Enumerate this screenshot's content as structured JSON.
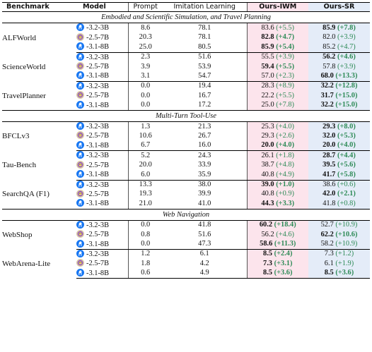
{
  "headers": {
    "benchmark": "Benchmark",
    "model": "Model",
    "prompt": "Prompt",
    "imitation": "Imitation Learning",
    "iwm": "Ours-IWM",
    "sr": "Ours-SR"
  },
  "icons": {
    "llama": "llama-icon",
    "qwen": "qwen-icon",
    "llama_color": "#1877f2",
    "qwen_color": "#8a4fbf"
  },
  "sections": [
    {
      "title": "Embodied and Scientific Simulation, and Travel Planning",
      "benchmarks": [
        {
          "name": "ALFWorld",
          "rows": [
            {
              "icon": "llama",
              "model": "-3.2-3B",
              "prompt": "8.6",
              "imit": "78.1",
              "iwm": "83.6",
              "iwm_d": "(+5.5)",
              "iwm_b": false,
              "sr": "85.9",
              "sr_d": "(+7.8)",
              "sr_b": true
            },
            {
              "icon": "qwen",
              "model": "-2.5-7B",
              "prompt": "20.3",
              "imit": "78.1",
              "iwm": "82.8",
              "iwm_d": "(+4.7)",
              "iwm_b": true,
              "sr": "82.0",
              "sr_d": "(+3.9)",
              "sr_b": false
            },
            {
              "icon": "llama",
              "model": "-3.1-8B",
              "prompt": "25.0",
              "imit": "80.5",
              "iwm": "85.9",
              "iwm_d": "(+5.4)",
              "iwm_b": true,
              "sr": "85.2",
              "sr_d": "(+4.7)",
              "sr_b": false
            }
          ]
        },
        {
          "name": "ScienceWorld",
          "rows": [
            {
              "icon": "llama",
              "model": "-3.2-3B",
              "prompt": "2.3",
              "imit": "51.6",
              "iwm": "55.5",
              "iwm_d": "(+3.9)",
              "iwm_b": false,
              "sr": "56.2",
              "sr_d": "(+4.6)",
              "sr_b": true
            },
            {
              "icon": "qwen",
              "model": "-2.5-7B",
              "prompt": "3.9",
              "imit": "53.9",
              "iwm": "59.4",
              "iwm_d": "(+5.5)",
              "iwm_b": true,
              "sr": "57.8",
              "sr_d": "(+3.9)",
              "sr_b": false
            },
            {
              "icon": "llama",
              "model": "-3.1-8B",
              "prompt": "3.1",
              "imit": "54.7",
              "iwm": "57.0",
              "iwm_d": "(+2.3)",
              "iwm_b": false,
              "sr": "68.0",
              "sr_d": "(+13.3)",
              "sr_b": true
            }
          ]
        },
        {
          "name": "TravelPlanner",
          "rows": [
            {
              "icon": "llama",
              "model": "-3.2-3B",
              "prompt": "0.0",
              "imit": "19.4",
              "iwm": "28.3",
              "iwm_d": "(+8.9)",
              "iwm_b": false,
              "sr": "32.2",
              "sr_d": "(+12.8)",
              "sr_b": true
            },
            {
              "icon": "qwen",
              "model": "-2.5-7B",
              "prompt": "0.0",
              "imit": "16.7",
              "iwm": "22.2",
              "iwm_d": "(+5.5)",
              "iwm_b": false,
              "sr": "31.7",
              "sr_d": "(+15.0)",
              "sr_b": true
            },
            {
              "icon": "llama",
              "model": "-3.1-8B",
              "prompt": "0.0",
              "imit": "17.2",
              "iwm": "25.0",
              "iwm_d": "(+7.8)",
              "iwm_b": false,
              "sr": "32.2",
              "sr_d": "(+15.0)",
              "sr_b": true
            }
          ]
        }
      ]
    },
    {
      "title": "Multi-Turn Tool-Use",
      "benchmarks": [
        {
          "name": "BFCLv3",
          "rows": [
            {
              "icon": "llama",
              "model": "-3.2-3B",
              "prompt": "1.3",
              "imit": "21.3",
              "iwm": "25.3",
              "iwm_d": "(+4.0)",
              "iwm_b": false,
              "sr": "29.3",
              "sr_d": "(+8.0)",
              "sr_b": true
            },
            {
              "icon": "qwen",
              "model": "-2.5-7B",
              "prompt": "10.6",
              "imit": "26.7",
              "iwm": "29.3",
              "iwm_d": "(+2.6)",
              "iwm_b": false,
              "sr": "32.0",
              "sr_d": "(+5.3)",
              "sr_b": true
            },
            {
              "icon": "llama",
              "model": "-3.1-8B",
              "prompt": "6.7",
              "imit": "16.0",
              "iwm": "20.0",
              "iwm_d": "(+4.0)",
              "iwm_b": true,
              "sr": "20.0",
              "sr_d": "(+4.0)",
              "sr_b": true
            }
          ]
        },
        {
          "name": "Tau-Bench",
          "rows": [
            {
              "icon": "llama",
              "model": "-3.2-3B",
              "prompt": "5.2",
              "imit": "24.3",
              "iwm": "26.1",
              "iwm_d": "(+1.8)",
              "iwm_b": false,
              "sr": "28.7",
              "sr_d": "(+4.4)",
              "sr_b": true
            },
            {
              "icon": "qwen",
              "model": "-2.5-7B",
              "prompt": "20.0",
              "imit": "33.9",
              "iwm": "38.7",
              "iwm_d": "(+4.8)",
              "iwm_b": false,
              "sr": "39.5",
              "sr_d": "(+5.6)",
              "sr_b": true
            },
            {
              "icon": "llama",
              "model": "-3.1-8B",
              "prompt": "6.0",
              "imit": "35.9",
              "iwm": "40.8",
              "iwm_d": "(+4.9)",
              "iwm_b": false,
              "sr": "41.7",
              "sr_d": "(+5.8)",
              "sr_b": true
            }
          ]
        },
        {
          "name": "SearchQA (F1)",
          "rows": [
            {
              "icon": "llama",
              "model": "-3.2-3B",
              "prompt": "13.3",
              "imit": "38.0",
              "iwm": "39.0",
              "iwm_d": "(+1.0)",
              "iwm_b": true,
              "sr": "38.6",
              "sr_d": "(+0.6)",
              "sr_b": false
            },
            {
              "icon": "qwen",
              "model": "-2.5-7B",
              "prompt": "19.3",
              "imit": "39.9",
              "iwm": "40.8",
              "iwm_d": "(+0.9)",
              "iwm_b": false,
              "sr": "42.0",
              "sr_d": "(+2.1)",
              "sr_b": true
            },
            {
              "icon": "llama",
              "model": "-3.1-8B",
              "prompt": "21.0",
              "imit": "41.0",
              "iwm": "44.3",
              "iwm_d": "(+3.3)",
              "iwm_b": true,
              "sr": "41.8",
              "sr_d": "(+0.8)",
              "sr_b": false
            }
          ]
        }
      ]
    },
    {
      "title": "Web Navigation",
      "benchmarks": [
        {
          "name": "WebShop",
          "rows": [
            {
              "icon": "llama",
              "model": "-3.2-3B",
              "prompt": "0.0",
              "imit": "41.8",
              "iwm": "60.2",
              "iwm_d": "(+18.4)",
              "iwm_b": true,
              "sr": "52.7",
              "sr_d": "(+10.9)",
              "sr_b": false
            },
            {
              "icon": "qwen",
              "model": "-2.5-7B",
              "prompt": "0.8",
              "imit": "51.6",
              "iwm": "56.2",
              "iwm_d": "(+4.6)",
              "iwm_b": false,
              "sr": "62.2",
              "sr_d": "(+10.6)",
              "sr_b": true
            },
            {
              "icon": "llama",
              "model": "-3.1-8B",
              "prompt": "0.0",
              "imit": "47.3",
              "iwm": "58.6",
              "iwm_d": "(+11.3)",
              "iwm_b": true,
              "sr": "58.2",
              "sr_d": "(+10.9)",
              "sr_b": false
            }
          ]
        },
        {
          "name": "WebArena-Lite",
          "rows": [
            {
              "icon": "llama",
              "model": "-3.2-3B",
              "prompt": "1.2",
              "imit": "6.1",
              "iwm": "8.5",
              "iwm_d": "(+2.4)",
              "iwm_b": true,
              "sr": "7.3",
              "sr_d": "(+1.2)",
              "sr_b": false
            },
            {
              "icon": "qwen",
              "model": "-2.5-7B",
              "prompt": "1.8",
              "imit": "4.2",
              "iwm": "7.3",
              "iwm_d": "(+3.1)",
              "iwm_b": true,
              "sr": "6.1",
              "sr_d": "(+1.9)",
              "sr_b": false
            },
            {
              "icon": "llama",
              "model": "-3.1-8B",
              "prompt": "0.6",
              "imit": "4.9",
              "iwm": "8.5",
              "iwm_d": "(+3.6)",
              "iwm_b": true,
              "sr": "8.5",
              "sr_d": "(+3.6)",
              "sr_b": true
            }
          ]
        }
      ]
    }
  ]
}
